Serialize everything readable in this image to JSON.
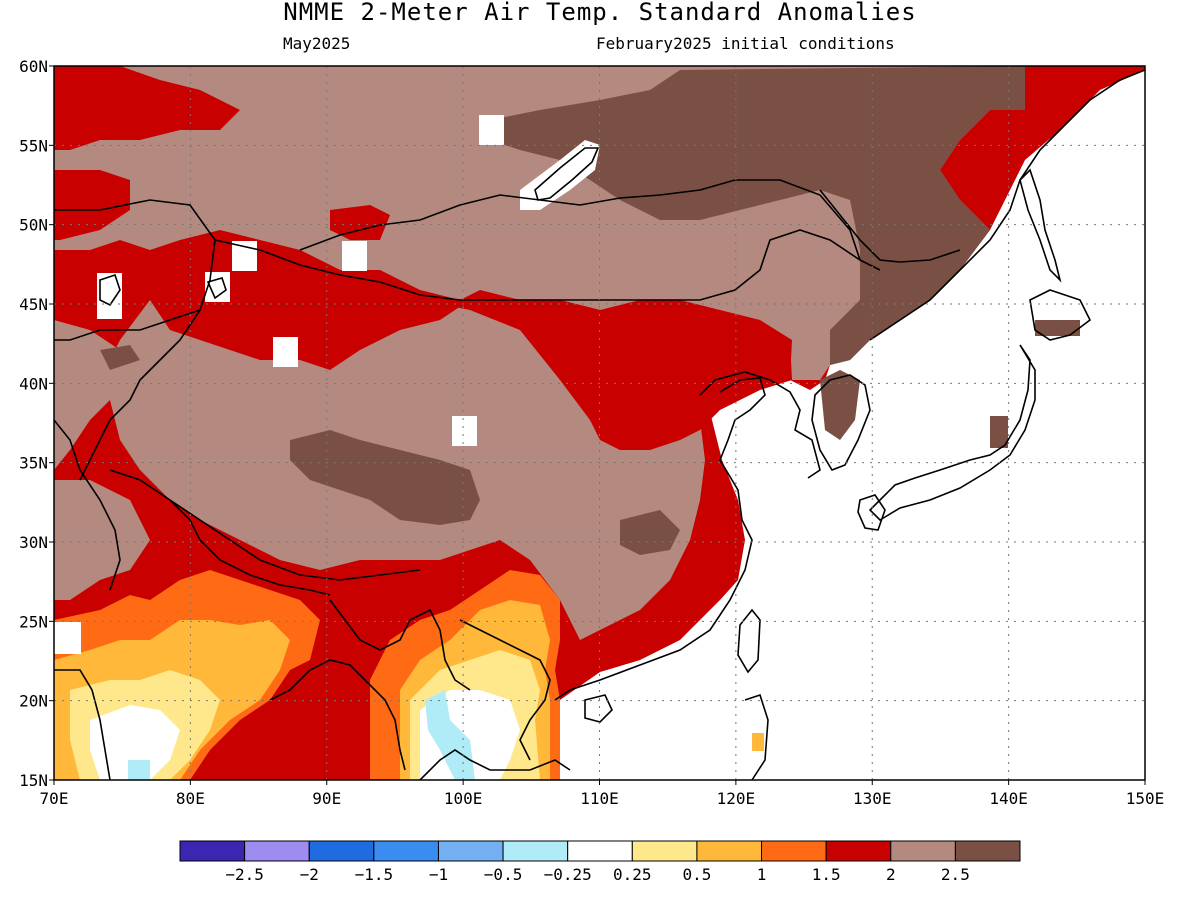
{
  "title": "NMME 2-Meter Air Temp. Standard Anomalies",
  "subtitle_left": "May2025",
  "subtitle_right": "February2025 initial conditions",
  "lat_labels": [
    "60N",
    "55N",
    "50N",
    "45N",
    "40N",
    "35N",
    "30N",
    "25N",
    "20N",
    "15N"
  ],
  "lon_labels": [
    "70E",
    "80E",
    "90E",
    "100E",
    "110E",
    "120E",
    "130E",
    "140E",
    "150E"
  ],
  "extent": {
    "lon_min": 70,
    "lon_max": 150,
    "lat_min": 15,
    "lat_max": 60
  },
  "colorbar": {
    "colors": [
      "#3a26b0",
      "#9e8cf0",
      "#1e6ce0",
      "#3a8cf0",
      "#72b0f2",
      "#b0ecf8",
      "#ffffff",
      "#ffe88c",
      "#ffb83a",
      "#ff6a14",
      "#c80000",
      "#b48a80",
      "#7a5044"
    ],
    "labels": [
      "−2.5",
      "−2",
      "−1.5",
      "−1",
      "−0.5",
      "−0.25",
      "0.25",
      "0.5",
      "1",
      "1.5",
      "2",
      "2.5"
    ]
  }
}
